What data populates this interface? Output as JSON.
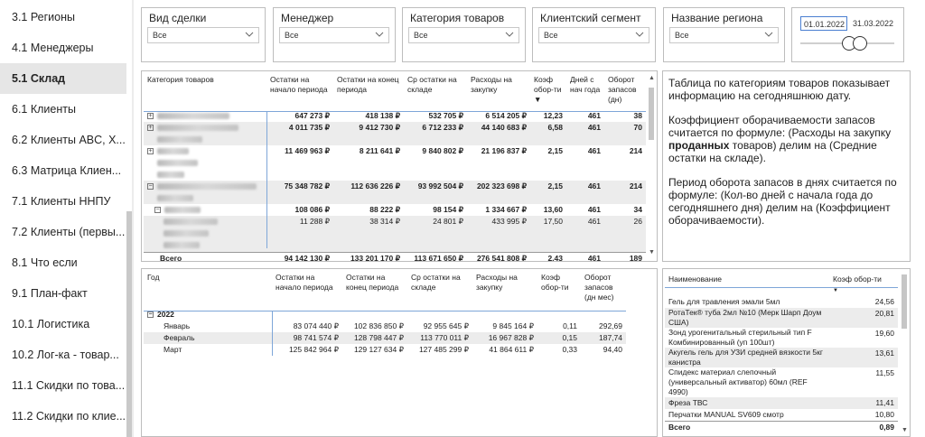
{
  "sidebar": {
    "items": [
      {
        "label": "3.1 Регионы",
        "active": false
      },
      {
        "label": "4.1 Менеджеры",
        "active": false
      },
      {
        "label": "5.1 Склад",
        "active": true
      },
      {
        "label": "6.1 Клиенты",
        "active": false
      },
      {
        "label": "6.2 Клиенты ABC, X...",
        "active": false
      },
      {
        "label": "6.3 Матрица Клиен...",
        "active": false
      },
      {
        "label": "7.1 Клиенты ННПУ",
        "active": false
      },
      {
        "label": "7.2 Клиенты (первы...",
        "active": false
      },
      {
        "label": "8.1 Что если",
        "active": false
      },
      {
        "label": "9.1 План-факт",
        "active": false
      },
      {
        "label": "10.1 Логистика",
        "active": false
      },
      {
        "label": "10.2 Лог-ка - товар...",
        "active": false
      },
      {
        "label": "11.1 Скидки по това...",
        "active": false
      },
      {
        "label": "11.2 Скидки по клие...",
        "active": false
      }
    ]
  },
  "slicers": [
    {
      "title": "Вид сделки",
      "value": "Все"
    },
    {
      "title": "Менеджер",
      "value": "Все"
    },
    {
      "title": "Категория товаров",
      "value": "Все"
    },
    {
      "title": "Клиентский сегмент",
      "value": "Все"
    },
    {
      "title": "Название региона",
      "value": "Все"
    }
  ],
  "date_slicer": {
    "start": "01.01.2022",
    "end": "31.03.2022"
  },
  "category_table": {
    "headers": [
      "Категория товаров",
      "Остатки на начало периода",
      "Остатки на конец периода",
      "Ср остатки на складе",
      "Расходы на закупку",
      "Коэф обор-ти",
      "Дней с нач года",
      "Оборот запасов (дн)"
    ],
    "rows": [
      {
        "values": [
          "647 273 ₽",
          "418 138 ₽",
          "532 705 ₽",
          "6 514 205 ₽",
          "12,23",
          "461",
          "38"
        ]
      },
      {
        "values": [
          "4 011 735 ₽",
          "9 412 730 ₽",
          "6 712 233 ₽",
          "44 140 683 ₽",
          "6,58",
          "461",
          "70"
        ]
      },
      {
        "values": [
          "11 469 963 ₽",
          "8 211 641 ₽",
          "9 840 802 ₽",
          "21 196 837 ₽",
          "2,15",
          "461",
          "214"
        ]
      },
      {
        "values": [
          "75 348 782 ₽",
          "112 636 226 ₽",
          "93 992 504 ₽",
          "202 323 698 ₽",
          "2,15",
          "461",
          "214"
        ]
      },
      {
        "values": [
          "108 086 ₽",
          "88 222 ₽",
          "98 154 ₽",
          "1 334 667 ₽",
          "13,60",
          "461",
          "34"
        ]
      },
      {
        "values": [
          "11 288 ₽",
          "38 314 ₽",
          "24 801 ₽",
          "433 995 ₽",
          "17,50",
          "461",
          "26"
        ]
      }
    ],
    "total_label": "Всего",
    "total": [
      "94 142 130 ₽",
      "133 201 170 ₽",
      "113 671 650 ₽",
      "276 541 808 ₽",
      "2,43",
      "461",
      "189"
    ]
  },
  "info_text": {
    "p1": "Таблица по категориям товаров показывает информацию на сегодняшнюю дату.",
    "p2_a": "Коэффициент оборачиваемости запасов считается по формуле: (Расходы на закупку ",
    "p2_b": "проданных",
    "p2_c": " товаров) делим на (Средние остатки на складе).",
    "p3": "Период оборота запасов в днях считается по формуле: (Кол-во дней с начала года до сегодняшнего дня) делим на (Коэффициент оборачиваемости)."
  },
  "year_table": {
    "headers": [
      "Год",
      "Остатки на начало периода",
      "Остатки на конец периода",
      "Ср остатки на складе",
      "Расходы на закупку",
      "Коэф обор-ти",
      "Оборот запасов (дн мес)"
    ],
    "year": "2022",
    "months": [
      {
        "label": "Январь",
        "values": [
          "83 074 440 ₽",
          "102 836 850 ₽",
          "92 955 645 ₽",
          "9 845 164 ₽",
          "0,11",
          "292,69"
        ]
      },
      {
        "label": "Февраль",
        "values": [
          "98 741 574 ₽",
          "128 798 447 ₽",
          "113 770 011 ₽",
          "16 967 828 ₽",
          "0,15",
          "187,74"
        ]
      },
      {
        "label": "Март",
        "values": [
          "125 842 964 ₽",
          "129 127 634 ₽",
          "127 485 299 ₽",
          "41 864 611 ₽",
          "0,33",
          "94,40"
        ]
      }
    ]
  },
  "product_table": {
    "headers": [
      "Наименование",
      "Коэф обор-ти"
    ],
    "rows": [
      {
        "name": "Гель для травления эмали 5мл",
        "value": "24,56"
      },
      {
        "name": "РотаТек® туба 2мл №10 (Мерк Шарп Доум США)",
        "value": "20,81"
      },
      {
        "name": "Зонд урогенитальный стерильный тип F Комбинированный (уп 100шт)",
        "value": "19,60"
      },
      {
        "name": "Акугель гель для УЗИ средней вязкости 5кг канистра",
        "value": "13,61"
      },
      {
        "name": "Спидекс материал слепочный (универсальный активатор) 60мл (REF 4990)",
        "value": "11,55"
      },
      {
        "name": "Фреза ТВС",
        "value": "11,41"
      },
      {
        "name": "Перчатки MANUAL SV609 смотр",
        "value": "10,80"
      }
    ],
    "total_label": "Всего",
    "total": "0,89"
  },
  "colors": {
    "accent": "#4a7fd1",
    "active_nav_bg": "#e6e6e6",
    "border": "#bdbdbd",
    "header_line": "#7ea6d8"
  }
}
